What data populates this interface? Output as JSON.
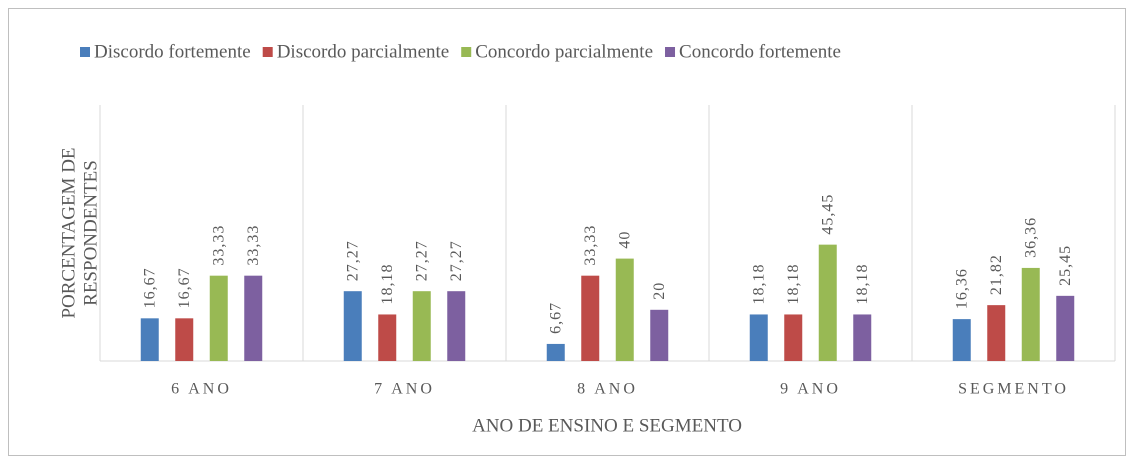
{
  "chart_data": {
    "type": "bar",
    "categories": [
      "6 ANO",
      "7 ANO",
      "8 ANO",
      "9 ANO",
      "SEGMENTO"
    ],
    "series": [
      {
        "name": "Discordo fortemente",
        "color": "#4a7ebb",
        "values": [
          16.67,
          27.27,
          6.67,
          18.18,
          16.36
        ],
        "value_labels": [
          "16,67",
          "27,27",
          "6,67",
          "18,18",
          "16,36"
        ]
      },
      {
        "name": "Discordo parcialmente",
        "color": "#be4b48",
        "values": [
          16.67,
          18.18,
          33.33,
          18.18,
          21.82
        ],
        "value_labels": [
          "16,67",
          "18,18",
          "33,33",
          "18,18",
          "21,82"
        ]
      },
      {
        "name": "Concordo parcialmente",
        "color": "#98b954",
        "values": [
          33.33,
          27.27,
          40,
          45.45,
          36.36
        ],
        "value_labels": [
          "33,33",
          "27,27",
          "40",
          "45,45",
          "36,36"
        ]
      },
      {
        "name": "Concordo fortemente",
        "color": "#7d60a0",
        "values": [
          33.33,
          27.27,
          20,
          18.18,
          25.45
        ],
        "value_labels": [
          "33,33",
          "27,27",
          "20",
          "18,18",
          "25,45"
        ]
      }
    ],
    "x_label": "ANO DE ENSINO E SEGMENTO",
    "y_label": [
      "PORCENTAGEM DE",
      "RESPONDENTES"
    ],
    "ylim": [
      0,
      100
    ],
    "legend": "top"
  }
}
